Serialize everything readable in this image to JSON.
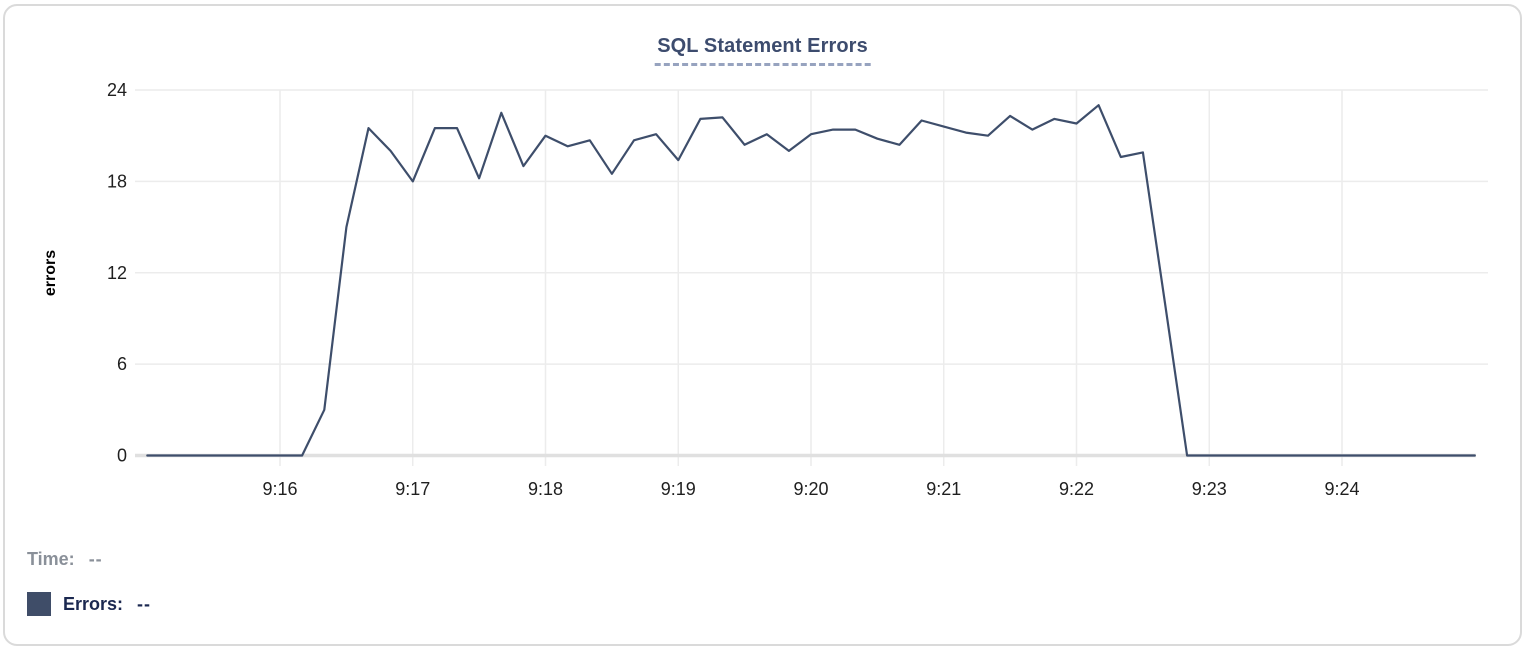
{
  "card": {
    "background": "#ffffff",
    "border_color": "#dadada"
  },
  "header": {
    "title": "SQL Statement Errors"
  },
  "readout": {
    "time_label": "Time:",
    "time_value": "--",
    "errors_label": "Errors:",
    "errors_value": "--"
  },
  "colors": {
    "series_line": "#3e4e6b",
    "legend_swatch": "#3f4d68",
    "title_text": "#3d4c6e",
    "title_underline": "#97a3bf",
    "grid": "#ececec",
    "zero_axis": "#e0e0e0",
    "tick_text": "#1f1f1f",
    "axis_label_text": "#000000",
    "time_label_text": "#8a9099",
    "errors_label_text": "#1b2850"
  },
  "chart_data": {
    "type": "line",
    "title": "SQL Statement Errors",
    "xlabel": "",
    "ylabel": "errors",
    "ylim": [
      0,
      24
    ],
    "y_ticks": [
      0,
      6,
      12,
      18,
      24
    ],
    "x_tick_labels": [
      "9:16",
      "9:17",
      "9:18",
      "9:19",
      "9:20",
      "9:21",
      "9:22",
      "9:23",
      "9:24"
    ],
    "grid": true,
    "legend_position": "bottom-left",
    "sample_interval_seconds": 10,
    "x_start": "9:15:00",
    "x_end": "9:25:00",
    "x_times": [
      "9:15:00",
      "9:15:10",
      "9:15:20",
      "9:15:30",
      "9:15:40",
      "9:15:50",
      "9:16:00",
      "9:16:10",
      "9:16:20",
      "9:16:30",
      "9:16:40",
      "9:16:50",
      "9:17:00",
      "9:17:10",
      "9:17:20",
      "9:17:30",
      "9:17:40",
      "9:17:50",
      "9:18:00",
      "9:18:10",
      "9:18:20",
      "9:18:30",
      "9:18:40",
      "9:18:50",
      "9:19:00",
      "9:19:10",
      "9:19:20",
      "9:19:30",
      "9:19:40",
      "9:19:50",
      "9:20:00",
      "9:20:10",
      "9:20:20",
      "9:20:30",
      "9:20:40",
      "9:20:50",
      "9:21:00",
      "9:21:10",
      "9:21:20",
      "9:21:30",
      "9:21:40",
      "9:21:50",
      "9:22:00",
      "9:22:10",
      "9:22:20",
      "9:22:30",
      "9:22:40",
      "9:22:50",
      "9:23:00",
      "9:23:10",
      "9:23:20",
      "9:23:30",
      "9:23:40",
      "9:23:50",
      "9:24:00",
      "9:24:10",
      "9:24:20",
      "9:24:30",
      "9:24:40",
      "9:24:50",
      "9:25:00"
    ],
    "series": [
      {
        "name": "Errors",
        "color": "#3e4e6b",
        "values": [
          0,
          0,
          0,
          0,
          0,
          0,
          0,
          0,
          3,
          15,
          21.5,
          20,
          18,
          21.5,
          21.5,
          18.2,
          22.5,
          19,
          21,
          20.3,
          20.7,
          18.5,
          20.7,
          21.1,
          19.4,
          22.1,
          22.2,
          20.4,
          21.1,
          20,
          21.1,
          21.4,
          21.4,
          20.8,
          20.4,
          22,
          21.6,
          21.2,
          21,
          22.3,
          21.4,
          22.1,
          21.8,
          23,
          19.6,
          19.9,
          10,
          0,
          0,
          0,
          0,
          0,
          0,
          0,
          0,
          0,
          0,
          0,
          0,
          0,
          0
        ]
      }
    ]
  }
}
